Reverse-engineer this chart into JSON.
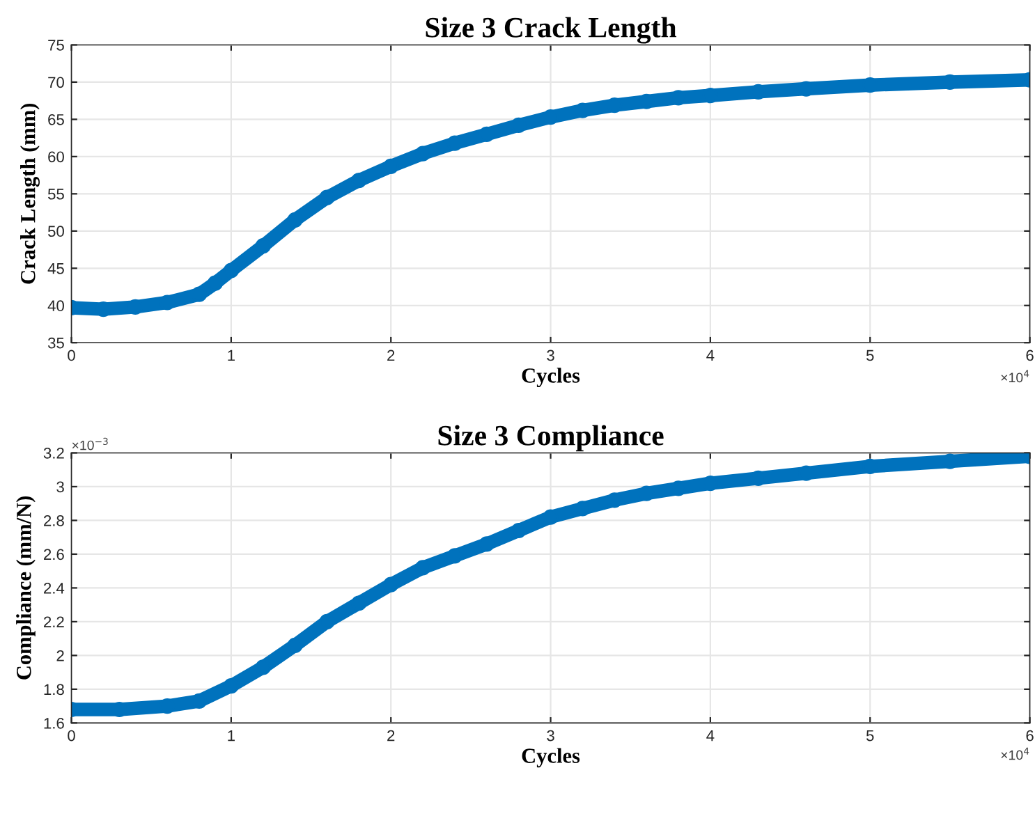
{
  "chart_data": [
    {
      "type": "line",
      "title": "Size 3 Crack Length",
      "xlabel": "Cycles",
      "ylabel": "Crack Length (mm)",
      "marker": "circle",
      "line_style": "solid",
      "grid": true,
      "xlim": [
        0,
        6
      ],
      "xticks": [
        0,
        1,
        2,
        3,
        4,
        5,
        6
      ],
      "ylim": [
        35,
        75
      ],
      "yticks": [
        35,
        40,
        45,
        50,
        55,
        60,
        65,
        70,
        75
      ],
      "annotations": [
        "×10$^{4}$"
      ],
      "series": [
        {
          "color": "#0072bd",
          "x": [
            0,
            0.2,
            0.4,
            0.6,
            0.8,
            0.9,
            1.0,
            1.2,
            1.4,
            1.6,
            1.8,
            2.0,
            2.2,
            2.4,
            2.6,
            2.8,
            3.0,
            3.2,
            3.4,
            3.6,
            3.8,
            4.0,
            4.3,
            4.6,
            5.0,
            5.5,
            6.0
          ],
          "values": [
            39.7,
            39.5,
            39.8,
            40.4,
            41.5,
            43,
            44.7,
            48,
            51.5,
            54.5,
            56.8,
            58.7,
            60.4,
            61.8,
            63,
            64.2,
            65.3,
            66.2,
            66.9,
            67.4,
            67.9,
            68.2,
            68.7,
            69.1,
            69.6,
            70,
            70.3
          ]
        }
      ]
    },
    {
      "type": "line",
      "title": "Size 3 Compliance",
      "xlabel": "Cycles",
      "ylabel": "Compliance (mm/N)",
      "marker": "circle",
      "line_style": "solid",
      "grid": true,
      "xlim": [
        0,
        6
      ],
      "xticks": [
        0,
        1,
        2,
        3,
        4,
        5,
        6
      ],
      "ylim": [
        1.6,
        3.2
      ],
      "yticks": [
        1.6,
        1.8,
        2,
        2.2,
        2.4,
        2.6,
        2.8,
        3,
        3.2
      ],
      "annotations": [
        "×10$^{4}$",
        "×10$^{−3}$"
      ],
      "series": [
        {
          "color": "#0072bd",
          "x": [
            0,
            0.3,
            0.6,
            0.8,
            1.0,
            1.2,
            1.4,
            1.6,
            1.8,
            2.0,
            2.2,
            2.4,
            2.6,
            2.8,
            3.0,
            3.2,
            3.4,
            3.6,
            3.8,
            4.0,
            4.3,
            4.6,
            5.0,
            5.5,
            6.0
          ],
          "values": [
            1.68,
            1.68,
            1.7,
            1.73,
            1.82,
            1.93,
            2.06,
            2.2,
            2.31,
            2.42,
            2.52,
            2.59,
            2.66,
            2.74,
            2.82,
            2.87,
            2.92,
            2.96,
            2.99,
            3.02,
            3.05,
            3.08,
            3.12,
            3.15,
            3.18
          ]
        }
      ]
    }
  ]
}
